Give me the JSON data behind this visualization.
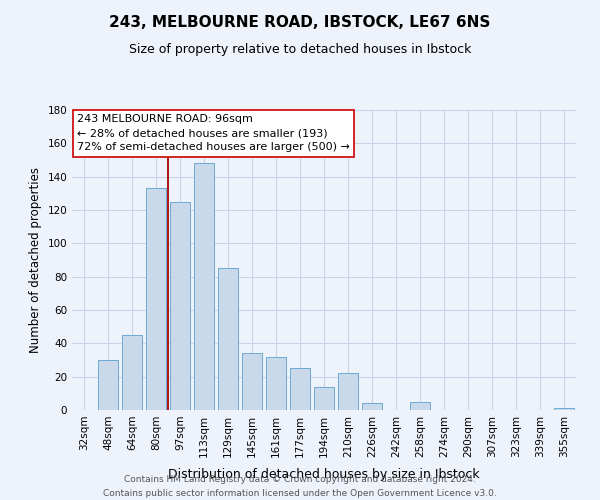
{
  "title": "243, MELBOURNE ROAD, IBSTOCK, LE67 6NS",
  "subtitle": "Size of property relative to detached houses in Ibstock",
  "xlabel": "Distribution of detached houses by size in Ibstock",
  "ylabel": "Number of detached properties",
  "categories": [
    "32sqm",
    "48sqm",
    "64sqm",
    "80sqm",
    "97sqm",
    "113sqm",
    "129sqm",
    "145sqm",
    "161sqm",
    "177sqm",
    "194sqm",
    "210sqm",
    "226sqm",
    "242sqm",
    "258sqm",
    "274sqm",
    "290sqm",
    "307sqm",
    "323sqm",
    "339sqm",
    "355sqm"
  ],
  "values": [
    0,
    30,
    45,
    133,
    125,
    148,
    85,
    34,
    32,
    25,
    14,
    22,
    4,
    0,
    5,
    0,
    0,
    0,
    0,
    0,
    1
  ],
  "bar_color": "#c9d9ea",
  "bar_edge_color": "#6aaad4",
  "bar_edge_width": 0.7,
  "grid_color": "#c8d4e8",
  "background_color": "#eef2fa",
  "ylim": [
    0,
    180
  ],
  "yticks": [
    0,
    20,
    40,
    60,
    80,
    100,
    120,
    140,
    160,
    180
  ],
  "marker_bin_index": 4,
  "marker_color": "#aa0000",
  "annotation_text": "243 MELBOURNE ROAD: 96sqm\n← 28% of detached houses are smaller (193)\n72% of semi-detached houses are larger (500) →",
  "annotation_box_color": "#ffffff",
  "annotation_box_edge_color": "#cc0000",
  "footer_line1": "Contains HM Land Registry data © Crown copyright and database right 2024.",
  "footer_line2": "Contains public sector information licensed under the Open Government Licence v3.0.",
  "title_fontsize": 11,
  "subtitle_fontsize": 9,
  "xlabel_fontsize": 9,
  "ylabel_fontsize": 8.5,
  "tick_fontsize": 7.5,
  "annotation_fontsize": 8,
  "footer_fontsize": 6.5
}
